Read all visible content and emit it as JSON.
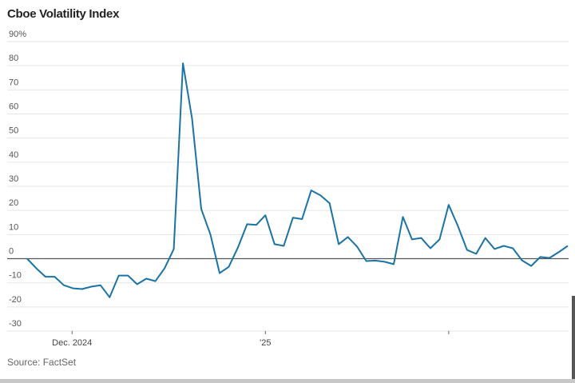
{
  "chart_data": {
    "type": "line",
    "title": "Cboe Volatility Index",
    "source": "Source: FactSet",
    "ylim": [
      -30,
      90
    ],
    "y_ticks": [
      {
        "value": 90,
        "label": "90%"
      },
      {
        "value": 80,
        "label": "80"
      },
      {
        "value": 70,
        "label": "70"
      },
      {
        "value": 60,
        "label": "60"
      },
      {
        "value": 50,
        "label": "50"
      },
      {
        "value": 40,
        "label": "40"
      },
      {
        "value": 30,
        "label": "30"
      },
      {
        "value": 20,
        "label": "20"
      },
      {
        "value": 10,
        "label": "10"
      },
      {
        "value": 0,
        "label": "0"
      },
      {
        "value": -10,
        "label": "-10"
      },
      {
        "value": -20,
        "label": "-20"
      },
      {
        "value": -30,
        "label": "-30"
      }
    ],
    "x_ticks": [
      {
        "at": 4.9,
        "label": "Dec. 2024"
      },
      {
        "at": 26,
        "label": "'25"
      },
      {
        "at": 46,
        "label": ""
      }
    ],
    "grid": true,
    "line_color": "#1a74a3",
    "series": [
      {
        "values": [
          0,
          -4,
          -7.5,
          -7.5,
          -11,
          -12.3,
          -12.6,
          -11.6,
          -11,
          -16,
          -7,
          -7,
          -10.6,
          -8.3,
          -9.3,
          -4,
          4,
          81,
          58,
          20.6,
          10,
          -6,
          -3.4,
          4.6,
          14.3,
          14,
          18,
          6,
          5.3,
          17,
          16.4,
          28.3,
          26.3,
          23,
          6,
          9,
          5,
          -1,
          -0.8,
          -1.3,
          -2.3,
          17.3,
          8,
          8.6,
          4.3,
          8,
          22.3,
          13.6,
          3.6,
          2,
          8.6,
          4,
          5.3,
          4.3,
          -0.7,
          -3,
          0.7,
          0.3,
          2.7,
          5.3
        ]
      }
    ]
  }
}
